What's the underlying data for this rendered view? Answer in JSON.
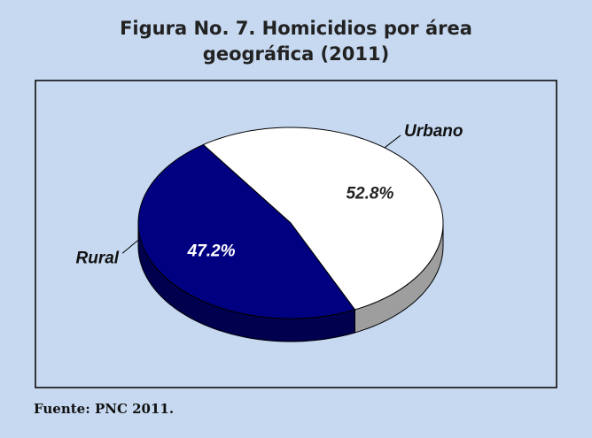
{
  "chart_data": {
    "type": "pie",
    "title": "Figura No. 7. Homicidios por área geográfica (2011)",
    "categories": [
      "Urbano",
      "Rural"
    ],
    "values": [
      52.8,
      47.2
    ],
    "value_labels": [
      "52.8%",
      "47.2%"
    ],
    "colors": [
      "#ffffff",
      "#000080"
    ],
    "source": "Fuente: PNC 2011."
  }
}
